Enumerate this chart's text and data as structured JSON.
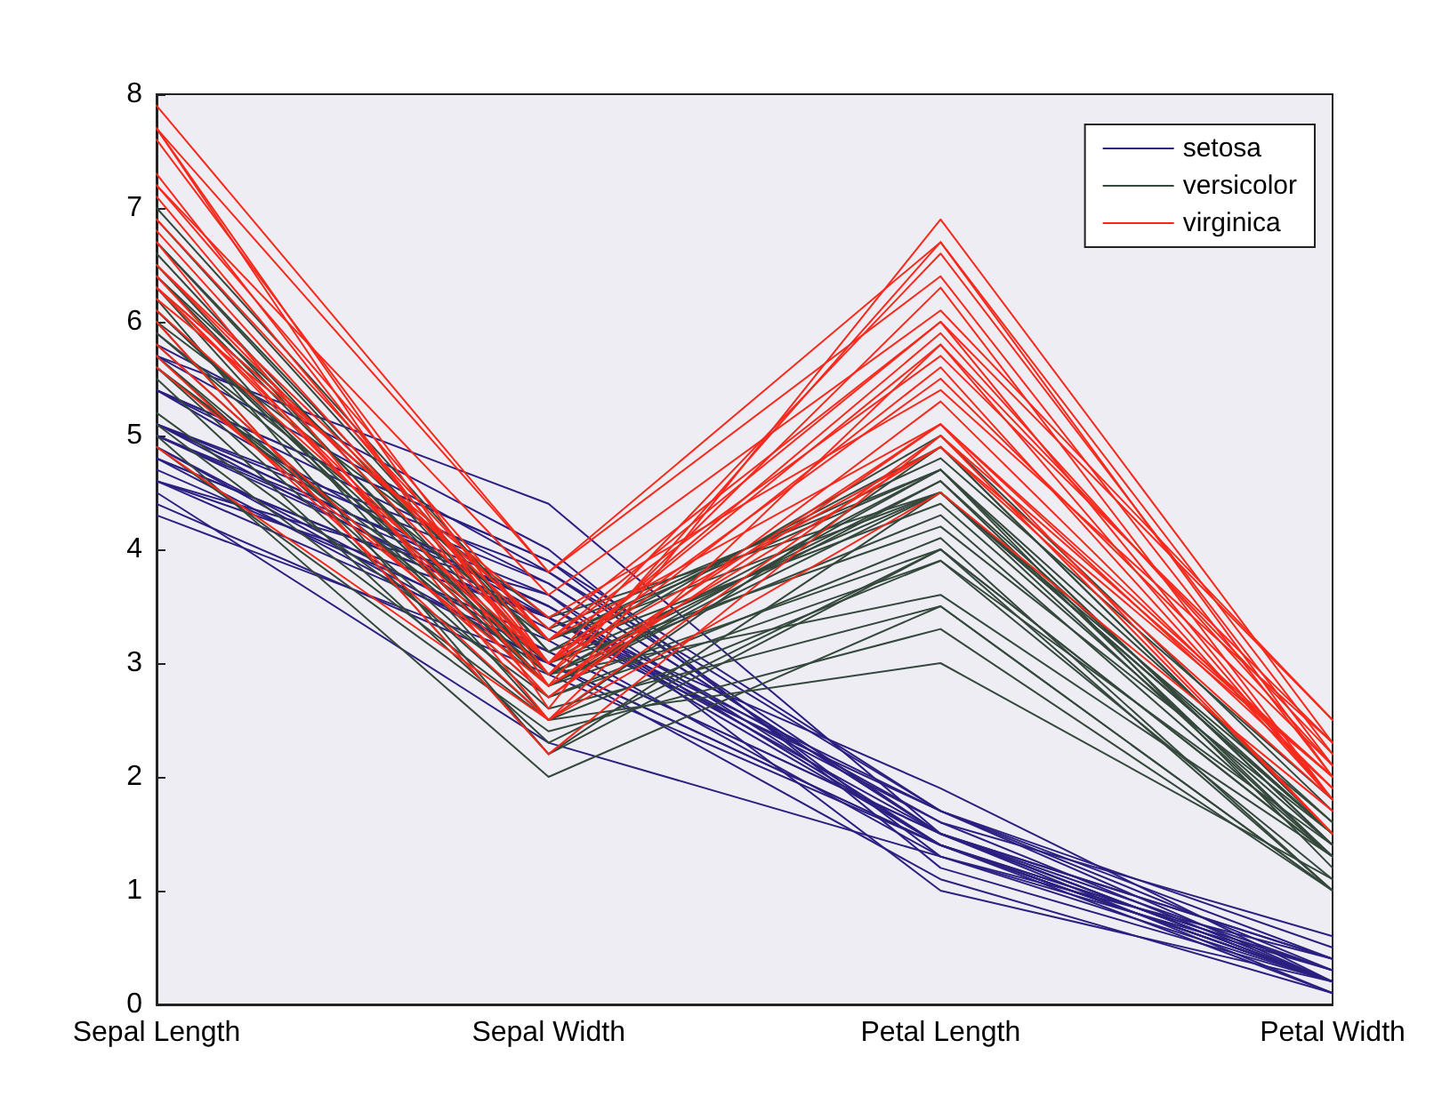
{
  "chart_data": {
    "type": "line",
    "categories": [
      "Sepal Length",
      "Sepal Width",
      "Petal Length",
      "Petal Width"
    ],
    "ylim": [
      0,
      8
    ],
    "yticks": [
      0,
      1,
      2,
      3,
      4,
      5,
      6,
      7,
      8
    ],
    "grid": false,
    "legend": "top right",
    "marker": "none",
    "line_style": "solid",
    "series": [
      {
        "name": "setosa",
        "color": "#2b2080",
        "values": [
          5.1,
          3.5,
          1.4,
          0.2
        ]
      },
      {
        "color": "#2b2080",
        "values": [
          4.9,
          3.0,
          1.4,
          0.2
        ]
      },
      {
        "color": "#2b2080",
        "values": [
          4.7,
          3.2,
          1.3,
          0.2
        ]
      },
      {
        "color": "#2b2080",
        "values": [
          4.6,
          3.1,
          1.5,
          0.2
        ]
      },
      {
        "color": "#2b2080",
        "values": [
          5.0,
          3.6,
          1.4,
          0.2
        ]
      },
      {
        "color": "#2b2080",
        "values": [
          5.4,
          3.9,
          1.7,
          0.4
        ]
      },
      {
        "color": "#2b2080",
        "values": [
          4.6,
          3.4,
          1.4,
          0.3
        ]
      },
      {
        "color": "#2b2080",
        "values": [
          5.0,
          3.4,
          1.5,
          0.2
        ]
      },
      {
        "color": "#2b2080",
        "values": [
          4.4,
          2.9,
          1.4,
          0.2
        ]
      },
      {
        "color": "#2b2080",
        "values": [
          4.9,
          3.1,
          1.5,
          0.1
        ]
      },
      {
        "color": "#2b2080",
        "values": [
          5.4,
          3.7,
          1.5,
          0.2
        ]
      },
      {
        "color": "#2b2080",
        "values": [
          4.8,
          3.4,
          1.6,
          0.2
        ]
      },
      {
        "color": "#2b2080",
        "values": [
          4.8,
          3.0,
          1.4,
          0.1
        ]
      },
      {
        "color": "#2b2080",
        "values": [
          4.3,
          3.0,
          1.1,
          0.1
        ]
      },
      {
        "color": "#2b2080",
        "values": [
          5.8,
          4.0,
          1.2,
          0.2
        ]
      },
      {
        "color": "#2b2080",
        "values": [
          5.7,
          4.4,
          1.5,
          0.4
        ]
      },
      {
        "color": "#2b2080",
        "values": [
          5.4,
          3.9,
          1.3,
          0.4
        ]
      },
      {
        "color": "#2b2080",
        "values": [
          5.1,
          3.5,
          1.4,
          0.3
        ]
      },
      {
        "color": "#2b2080",
        "values": [
          5.7,
          3.8,
          1.7,
          0.3
        ]
      },
      {
        "color": "#2b2080",
        "values": [
          5.1,
          3.8,
          1.5,
          0.3
        ]
      },
      {
        "color": "#2b2080",
        "values": [
          5.4,
          3.4,
          1.7,
          0.2
        ]
      },
      {
        "color": "#2b2080",
        "values": [
          5.1,
          3.7,
          1.5,
          0.4
        ]
      },
      {
        "color": "#2b2080",
        "values": [
          4.6,
          3.6,
          1.0,
          0.2
        ]
      },
      {
        "color": "#2b2080",
        "values": [
          5.1,
          3.3,
          1.7,
          0.5
        ]
      },
      {
        "color": "#2b2080",
        "values": [
          4.8,
          3.4,
          1.9,
          0.2
        ]
      },
      {
        "color": "#2b2080",
        "values": [
          4.5,
          2.3,
          1.3,
          0.3
        ]
      },
      {
        "color": "#2b2080",
        "values": [
          5.0,
          3.5,
          1.6,
          0.6
        ]
      },
      {
        "name": "versicolor",
        "color": "#34483c",
        "values": [
          7.0,
          3.2,
          4.7,
          1.4
        ]
      },
      {
        "color": "#34483c",
        "values": [
          6.4,
          3.2,
          4.5,
          1.5
        ]
      },
      {
        "color": "#34483c",
        "values": [
          6.9,
          3.1,
          4.9,
          1.5
        ]
      },
      {
        "color": "#34483c",
        "values": [
          5.5,
          2.3,
          4.0,
          1.3
        ]
      },
      {
        "color": "#34483c",
        "values": [
          6.5,
          2.8,
          4.6,
          1.5
        ]
      },
      {
        "color": "#34483c",
        "values": [
          5.7,
          2.8,
          4.5,
          1.3
        ]
      },
      {
        "color": "#34483c",
        "values": [
          6.3,
          3.3,
          4.7,
          1.6
        ]
      },
      {
        "color": "#34483c",
        "values": [
          4.9,
          2.4,
          3.3,
          1.0
        ]
      },
      {
        "color": "#34483c",
        "values": [
          6.6,
          2.9,
          4.6,
          1.3
        ]
      },
      {
        "color": "#34483c",
        "values": [
          5.2,
          2.7,
          3.9,
          1.4
        ]
      },
      {
        "color": "#34483c",
        "values": [
          5.0,
          2.0,
          3.5,
          1.0
        ]
      },
      {
        "color": "#34483c",
        "values": [
          5.9,
          3.0,
          4.2,
          1.5
        ]
      },
      {
        "color": "#34483c",
        "values": [
          6.0,
          2.2,
          4.0,
          1.0
        ]
      },
      {
        "color": "#34483c",
        "values": [
          6.1,
          2.9,
          4.7,
          1.4
        ]
      },
      {
        "color": "#34483c",
        "values": [
          5.6,
          2.9,
          3.6,
          1.3
        ]
      },
      {
        "color": "#34483c",
        "values": [
          6.7,
          3.1,
          4.4,
          1.4
        ]
      },
      {
        "color": "#34483c",
        "values": [
          5.6,
          3.0,
          4.5,
          1.5
        ]
      },
      {
        "color": "#34483c",
        "values": [
          5.8,
          2.7,
          4.1,
          1.0
        ]
      },
      {
        "color": "#34483c",
        "values": [
          6.2,
          2.2,
          4.5,
          1.5
        ]
      },
      {
        "color": "#34483c",
        "values": [
          5.6,
          2.5,
          3.9,
          1.1
        ]
      },
      {
        "color": "#34483c",
        "values": [
          5.9,
          3.2,
          4.8,
          1.8
        ]
      },
      {
        "color": "#34483c",
        "values": [
          6.1,
          2.8,
          4.0,
          1.3
        ]
      },
      {
        "color": "#34483c",
        "values": [
          6.3,
          2.5,
          4.9,
          1.5
        ]
      },
      {
        "color": "#34483c",
        "values": [
          6.1,
          2.8,
          4.7,
          1.2
        ]
      },
      {
        "color": "#34483c",
        "values": [
          6.4,
          2.9,
          4.3,
          1.3
        ]
      },
      {
        "color": "#34483c",
        "values": [
          5.1,
          2.5,
          3.0,
          1.1
        ]
      },
      {
        "color": "#34483c",
        "values": [
          6.0,
          3.4,
          4.5,
          1.6
        ]
      },
      {
        "color": "#34483c",
        "values": [
          5.7,
          2.6,
          3.5,
          1.0
        ]
      },
      {
        "color": "#34483c",
        "values": [
          6.7,
          3.0,
          5.0,
          1.7
        ]
      },
      {
        "name": "virginica",
        "color": "#f52a1c",
        "values": [
          6.3,
          3.3,
          6.0,
          2.5
        ]
      },
      {
        "color": "#f52a1c",
        "values": [
          5.8,
          2.7,
          5.1,
          1.9
        ]
      },
      {
        "color": "#f52a1c",
        "values": [
          7.1,
          3.0,
          5.9,
          2.1
        ]
      },
      {
        "color": "#f52a1c",
        "values": [
          6.3,
          2.9,
          5.6,
          1.8
        ]
      },
      {
        "color": "#f52a1c",
        "values": [
          6.5,
          3.0,
          5.8,
          2.2
        ]
      },
      {
        "color": "#f52a1c",
        "values": [
          7.6,
          3.0,
          6.6,
          2.1
        ]
      },
      {
        "color": "#f52a1c",
        "values": [
          4.9,
          2.5,
          4.5,
          1.7
        ]
      },
      {
        "color": "#f52a1c",
        "values": [
          7.3,
          2.9,
          6.3,
          1.8
        ]
      },
      {
        "color": "#f52a1c",
        "values": [
          6.7,
          2.5,
          5.8,
          1.8
        ]
      },
      {
        "color": "#f52a1c",
        "values": [
          7.2,
          3.6,
          6.1,
          2.5
        ]
      },
      {
        "color": "#f52a1c",
        "values": [
          6.5,
          3.2,
          5.1,
          2.0
        ]
      },
      {
        "color": "#f52a1c",
        "values": [
          6.4,
          2.7,
          5.3,
          1.9
        ]
      },
      {
        "color": "#f52a1c",
        "values": [
          6.8,
          3.0,
          5.5,
          2.1
        ]
      },
      {
        "color": "#f52a1c",
        "values": [
          5.7,
          2.5,
          5.0,
          2.0
        ]
      },
      {
        "color": "#f52a1c",
        "values": [
          7.7,
          3.8,
          6.7,
          2.2
        ]
      },
      {
        "color": "#f52a1c",
        "values": [
          7.7,
          2.6,
          6.9,
          2.3
        ]
      },
      {
        "color": "#f52a1c",
        "values": [
          6.0,
          2.2,
          5.0,
          1.5
        ]
      },
      {
        "color": "#f52a1c",
        "values": [
          6.9,
          3.2,
          5.7,
          2.3
        ]
      },
      {
        "color": "#f52a1c",
        "values": [
          5.6,
          2.8,
          4.9,
          2.0
        ]
      },
      {
        "color": "#f52a1c",
        "values": [
          7.7,
          2.8,
          6.7,
          2.0
        ]
      },
      {
        "color": "#f52a1c",
        "values": [
          7.9,
          3.8,
          6.4,
          2.0
        ]
      },
      {
        "color": "#f52a1c",
        "values": [
          6.2,
          3.4,
          5.4,
          2.3
        ]
      },
      {
        "color": "#f52a1c",
        "values": [
          6.1,
          3.0,
          4.9,
          1.8
        ]
      },
      {
        "color": "#f52a1c",
        "values": [
          7.2,
          3.2,
          6.0,
          1.8
        ]
      },
      {
        "color": "#f52a1c",
        "values": [
          6.3,
          2.8,
          5.1,
          1.5
        ]
      }
    ]
  }
}
